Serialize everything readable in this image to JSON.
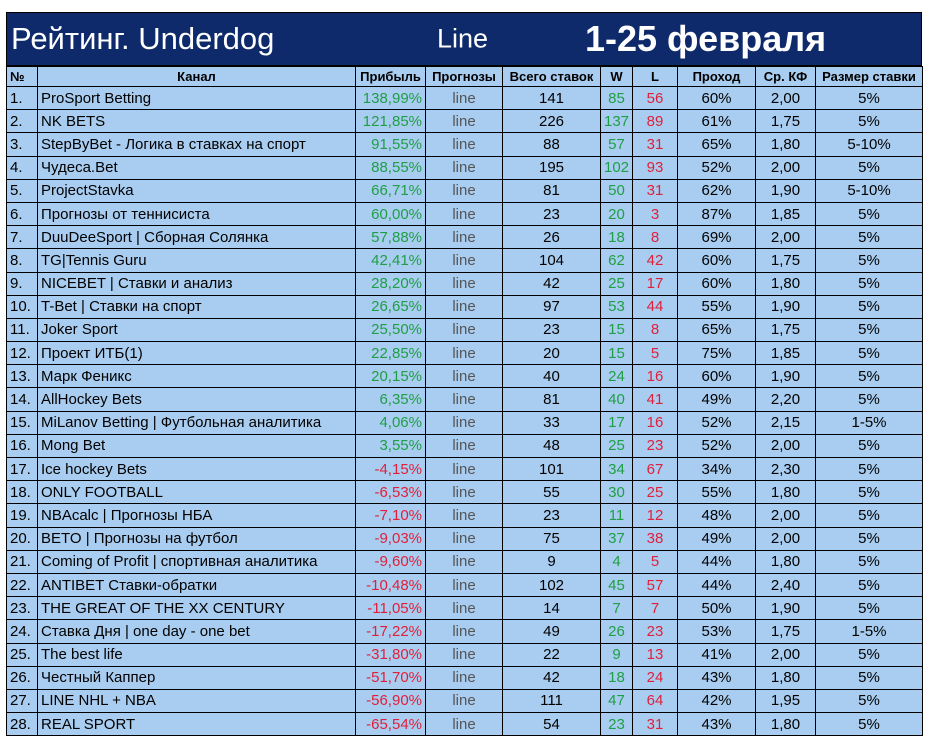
{
  "title": {
    "main": "Рейтинг. Underdog",
    "mode": "Line",
    "period": "1-25 февраля"
  },
  "table": {
    "header": [
      "№",
      "Канал",
      "Прибыль",
      "Прогнозы",
      "Всего ставок",
      "W",
      "L",
      "Проход",
      "Ср. КФ",
      "Размер ставки"
    ],
    "rows": [
      [
        "1.",
        "ProSport Betting",
        "138,99%",
        "line",
        "141",
        "85",
        "56",
        "60%",
        "2,00",
        "5%"
      ],
      [
        "2.",
        "NK BETS",
        "121,85%",
        "line",
        "226",
        "137",
        "89",
        "61%",
        "1,75",
        "5%"
      ],
      [
        "3.",
        "StepByBet - Логика в ставках на спорт",
        "91,55%",
        "line",
        "88",
        "57",
        "31",
        "65%",
        "1,80",
        "5-10%"
      ],
      [
        "4.",
        "Чудеса.Bet",
        "88,55%",
        "line",
        "195",
        "102",
        "93",
        "52%",
        "2,00",
        "5%"
      ],
      [
        "5.",
        "ProjectStavka",
        "66,71%",
        "line",
        "81",
        "50",
        "31",
        "62%",
        "1,90",
        "5-10%"
      ],
      [
        "6.",
        "Прогнозы от теннисиста",
        "60,00%",
        "line",
        "23",
        "20",
        "3",
        "87%",
        "1,85",
        "5%"
      ],
      [
        "7.",
        "DuuDeeSport | Сборная Солянка",
        "57,88%",
        "line",
        "26",
        "18",
        "8",
        "69%",
        "2,00",
        "5%"
      ],
      [
        "8.",
        "TG|Tennis Guru",
        "42,41%",
        "line",
        "104",
        "62",
        "42",
        "60%",
        "1,75",
        "5%"
      ],
      [
        "9.",
        "NICEBET | Ставки и анализ",
        "28,20%",
        "line",
        "42",
        "25",
        "17",
        "60%",
        "1,80",
        "5%"
      ],
      [
        "10.",
        "T-Bet | Ставки на спорт",
        "26,65%",
        "line",
        "97",
        "53",
        "44",
        "55%",
        "1,90",
        "5%"
      ],
      [
        "11.",
        "Joker Sport",
        "25,50%",
        "line",
        "23",
        "15",
        "8",
        "65%",
        "1,75",
        "5%"
      ],
      [
        "12.",
        "Проект ИТБ(1)",
        "22,85%",
        "line",
        "20",
        "15",
        "5",
        "75%",
        "1,85",
        "5%"
      ],
      [
        "13.",
        "Марк Феникс",
        "20,15%",
        "line",
        "40",
        "24",
        "16",
        "60%",
        "1,90",
        "5%"
      ],
      [
        "14.",
        "AllHockey Bets",
        "6,35%",
        "line",
        "81",
        "40",
        "41",
        "49%",
        "2,20",
        "5%"
      ],
      [
        "15.",
        "MiLanov Betting | Футбольная аналитика",
        "4,06%",
        "line",
        "33",
        "17",
        "16",
        "52%",
        "2,15",
        "1-5%"
      ],
      [
        "16.",
        "Mong Bet",
        "3,55%",
        "line",
        "48",
        "25",
        "23",
        "52%",
        "2,00",
        "5%"
      ],
      [
        "17.",
        "Ice hockey Bets",
        "-4,15%",
        "line",
        "101",
        "34",
        "67",
        "34%",
        "2,30",
        "5%"
      ],
      [
        "18.",
        "ONLY FOOTBALL",
        "-6,53%",
        "line",
        "55",
        "30",
        "25",
        "55%",
        "1,80",
        "5%"
      ],
      [
        "19.",
        "NBAcalc | Прогнозы НБА",
        "-7,10%",
        "line",
        "23",
        "11",
        "12",
        "48%",
        "2,00",
        "5%"
      ],
      [
        "20.",
        "BETO | Прогнозы на футбол",
        "-9,03%",
        "line",
        "75",
        "37",
        "38",
        "49%",
        "2,00",
        "5%"
      ],
      [
        "21.",
        "Coming of Profit | спортивная аналитика",
        "-9,60%",
        "line",
        "9",
        "4",
        "5",
        "44%",
        "1,80",
        "5%"
      ],
      [
        "22.",
        "ANTIBET Ставки-обратки",
        "-10,48%",
        "line",
        "102",
        "45",
        "57",
        "44%",
        "2,40",
        "5%"
      ],
      [
        "23.",
        "THE GREAT OF THE XX CENTURY",
        "-11,05%",
        "line",
        "14",
        "7",
        "7",
        "50%",
        "1,90",
        "5%"
      ],
      [
        "24.",
        "Ставка Дня | one day - one bet",
        "-17,22%",
        "line",
        "49",
        "26",
        "23",
        "53%",
        "1,75",
        "1-5%"
      ],
      [
        "25.",
        "The best life",
        "-31,80%",
        "line",
        "22",
        "9",
        "13",
        "41%",
        "2,00",
        "5%"
      ],
      [
        "26.",
        "Честный Каппер",
        "-51,70%",
        "line",
        "42",
        "18",
        "24",
        "43%",
        "1,80",
        "5%"
      ],
      [
        "27.",
        "LINE NHL + NBA",
        "-56,90%",
        "line",
        "111",
        "47",
        "64",
        "42%",
        "1,95",
        "5%"
      ],
      [
        "28.",
        "REAL SPORT",
        "-65,54%",
        "line",
        "54",
        "23",
        "31",
        "43%",
        "1,80",
        "5%"
      ]
    ]
  }
}
